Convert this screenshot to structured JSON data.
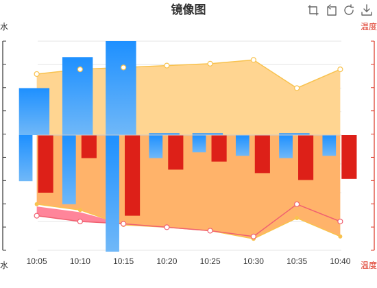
{
  "chart_data": {
    "type": "bar",
    "title": "镜像图",
    "categories": [
      "10:05",
      "10:10",
      "10:15",
      "10:20",
      "10:25",
      "10:30",
      "10:35",
      "10:40"
    ],
    "colors": {
      "water_bar_top": "#1E90FF",
      "water_bar_bottom": "#70B8F8",
      "temp_bar": "#DD2018",
      "area_upper": "#FFD591",
      "area_upper_line": "#F8C24E",
      "area_lower": "#FFB36A",
      "area_lower_line": "#F8C24E",
      "area_red": "#FF7088",
      "area_red_line": "#F06070",
      "grid": "#E6E6E6",
      "axis_left": "#333333",
      "axis_right": "#DD3322"
    },
    "top_panel": {
      "y_axis_name": "水",
      "ylim": [
        0,
        1
      ],
      "bars_water": [
        0.5,
        0.83,
        1.2,
        0.02,
        0.02,
        0.0,
        0.02,
        0.0
      ],
      "area_line": [
        0.65,
        0.7,
        0.72,
        0.74,
        0.76,
        0.8,
        0.5,
        0.7
      ]
    },
    "bottom_panel": {
      "y_axis_name": "水",
      "right_axis_name": "温度",
      "ylim": [
        0,
        1
      ],
      "bars_water": [
        0.4,
        0.6,
        1.2,
        0.2,
        0.15,
        0.18,
        0.2,
        0.18
      ],
      "bars_temp": [
        0.5,
        0.2,
        0.7,
        0.3,
        0.23,
        0.33,
        0.39,
        0.38
      ],
      "area_orange": [
        0.6,
        0.65,
        0.78,
        0.8,
        0.83,
        0.9,
        0.72,
        0.88
      ],
      "area_red": [
        0.7,
        0.75,
        0.77,
        0.8,
        0.83,
        0.88,
        0.6,
        0.75
      ],
      "area_red_under": [
        0.62,
        0.67,
        0.77,
        0.8,
        0.83,
        0.88,
        0.6,
        0.75
      ]
    },
    "right_axis_name_top": "温度",
    "toolbox": [
      "zoom-icon",
      "zoom-reset-icon",
      "restore-icon",
      "save-image-icon"
    ]
  }
}
